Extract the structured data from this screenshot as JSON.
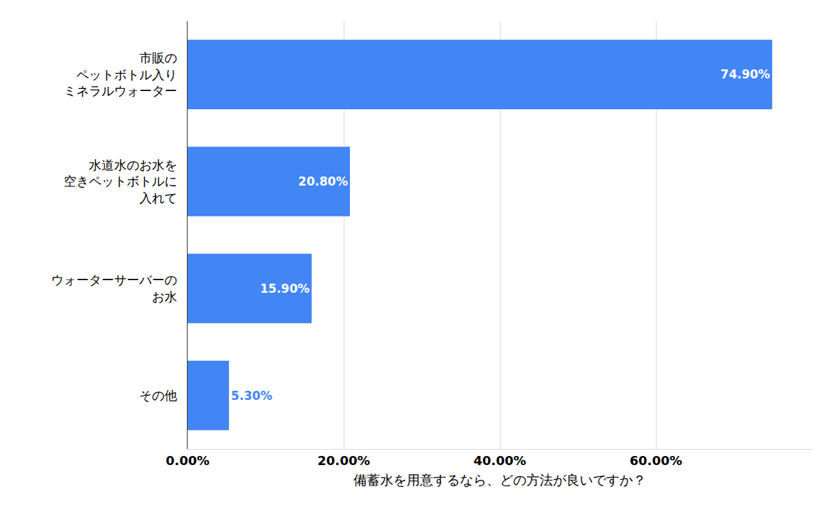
{
  "chart_data": {
    "type": "bar",
    "orientation": "horizontal",
    "xlabel": "備蓄水を用意するなら、どの方法が良いですか？",
    "categories": [
      "市販の\nペットボトル入り\nミネラルウォーター",
      "水道水のお水を\n空きペットボトルに\n入れて",
      "ウォーターサーバーの\nお水",
      "その他"
    ],
    "values": [
      74.9,
      20.8,
      15.9,
      5.3
    ],
    "value_labels": [
      "74.90%",
      "20.80%",
      "15.90%",
      "5.30%"
    ],
    "data_labels": true,
    "color": "#4285f4",
    "xlim": [
      0,
      80
    ],
    "xticks": [
      {
        "value": 0,
        "label": "0.00%"
      },
      {
        "value": 20,
        "label": "20.00%"
      },
      {
        "value": 40,
        "label": "40.00%"
      },
      {
        "value": 60,
        "label": "60.00%"
      }
    ],
    "grid": true
  }
}
